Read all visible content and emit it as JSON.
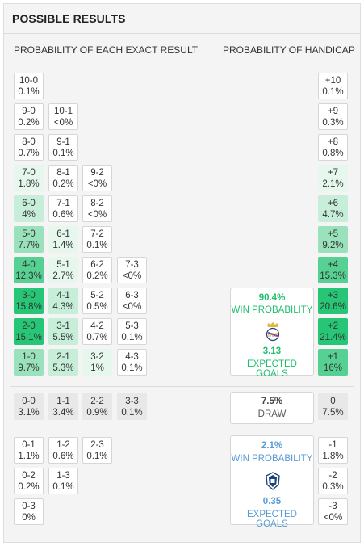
{
  "header": {
    "title": "POSSIBLE RESULTS"
  },
  "columns": {
    "left_title": "PROBABILITY OF EACH EXACT RESULT",
    "right_title": "PROBABILITY OF HANDICAP"
  },
  "colors": {
    "home_win_accent": "#1fbf6e",
    "away_win_accent": "#5b9bd5",
    "draw_cell": "#e8e8e8"
  },
  "home_win_rows": [
    {
      "cells": [
        {
          "score": "10-0",
          "pct": "0.1%",
          "level": 0
        }
      ],
      "handicap": {
        "label": "+10",
        "pct": "0.1%",
        "level": 0
      }
    },
    {
      "cells": [
        {
          "score": "9-0",
          "pct": "0.2%",
          "level": 0
        },
        {
          "score": "10-1",
          "pct": "<0%",
          "level": 0
        }
      ],
      "handicap": {
        "label": "+9",
        "pct": "0.3%",
        "level": 0
      }
    },
    {
      "cells": [
        {
          "score": "8-0",
          "pct": "0.7%",
          "level": 0
        },
        {
          "score": "9-1",
          "pct": "0.1%",
          "level": 0
        }
      ],
      "handicap": {
        "label": "+8",
        "pct": "0.8%",
        "level": 0
      }
    },
    {
      "cells": [
        {
          "score": "7-0",
          "pct": "1.8%",
          "level": 1
        },
        {
          "score": "8-1",
          "pct": "0.2%",
          "level": 0
        },
        {
          "score": "9-2",
          "pct": "<0%",
          "level": 0
        }
      ],
      "handicap": {
        "label": "+7",
        "pct": "2.1%",
        "level": 1
      }
    },
    {
      "cells": [
        {
          "score": "6-0",
          "pct": "4%",
          "level": 2
        },
        {
          "score": "7-1",
          "pct": "0.6%",
          "level": 0
        },
        {
          "score": "8-2",
          "pct": "<0%",
          "level": 0
        }
      ],
      "handicap": {
        "label": "+6",
        "pct": "4.7%",
        "level": 2
      }
    },
    {
      "cells": [
        {
          "score": "5-0",
          "pct": "7.7%",
          "level": 3
        },
        {
          "score": "6-1",
          "pct": "1.4%",
          "level": 1
        },
        {
          "score": "7-2",
          "pct": "0.1%",
          "level": 0
        }
      ],
      "handicap": {
        "label": "+5",
        "pct": "9.2%",
        "level": 3
      }
    },
    {
      "cells": [
        {
          "score": "4-0",
          "pct": "12.3%",
          "level": 4
        },
        {
          "score": "5-1",
          "pct": "2.7%",
          "level": 1
        },
        {
          "score": "6-2",
          "pct": "0.2%",
          "level": 0
        },
        {
          "score": "7-3",
          "pct": "<0%",
          "level": 0
        }
      ],
      "handicap": {
        "label": "+4",
        "pct": "15.3%",
        "level": 4
      }
    },
    {
      "cells": [
        {
          "score": "3-0",
          "pct": "15.8%",
          "level": 5
        },
        {
          "score": "4-1",
          "pct": "4.3%",
          "level": 2
        },
        {
          "score": "5-2",
          "pct": "0.5%",
          "level": 0
        },
        {
          "score": "6-3",
          "pct": "<0%",
          "level": 0
        }
      ],
      "handicap": {
        "label": "+3",
        "pct": "20.6%",
        "level": 5
      }
    },
    {
      "cells": [
        {
          "score": "2-0",
          "pct": "15.1%",
          "level": 5
        },
        {
          "score": "3-1",
          "pct": "5.5%",
          "level": 2
        },
        {
          "score": "4-2",
          "pct": "0.7%",
          "level": 0
        },
        {
          "score": "5-3",
          "pct": "0.1%",
          "level": 0
        }
      ],
      "handicap": {
        "label": "+2",
        "pct": "21.4%",
        "level": 5
      }
    },
    {
      "cells": [
        {
          "score": "1-0",
          "pct": "9.7%",
          "level": 3
        },
        {
          "score": "2-1",
          "pct": "5.3%",
          "level": 2
        },
        {
          "score": "3-2",
          "pct": "1%",
          "level": 1
        },
        {
          "score": "4-3",
          "pct": "0.1%",
          "level": 0
        }
      ],
      "handicap": {
        "label": "+1",
        "pct": "16%",
        "level": 4
      }
    }
  ],
  "draw_row": {
    "cells": [
      {
        "score": "0-0",
        "pct": "3.1%"
      },
      {
        "score": "1-1",
        "pct": "3.4%"
      },
      {
        "score": "2-2",
        "pct": "0.9%"
      },
      {
        "score": "3-3",
        "pct": "0.1%"
      }
    ],
    "summary": {
      "pct": "7.5%",
      "label": "DRAW"
    },
    "handicap": {
      "label": "0",
      "pct": "7.5%"
    }
  },
  "away_win_rows": [
    {
      "cells": [
        {
          "score": "0-1",
          "pct": "1.1%"
        },
        {
          "score": "1-2",
          "pct": "0.6%"
        },
        {
          "score": "2-3",
          "pct": "0.1%"
        }
      ],
      "handicap": {
        "label": "-1",
        "pct": "1.8%"
      }
    },
    {
      "cells": [
        {
          "score": "0-2",
          "pct": "0.2%"
        },
        {
          "score": "1-3",
          "pct": "0.1%"
        }
      ],
      "handicap": {
        "label": "-2",
        "pct": "0.3%"
      }
    },
    {
      "cells": [
        {
          "score": "0-3",
          "pct": "0%"
        }
      ],
      "handicap": {
        "label": "-3",
        "pct": "<0%"
      }
    }
  ],
  "home_card": {
    "win_pct": "90.4%",
    "win_label": "WIN PROBABILITY",
    "crest_icon": "real-madrid-crest-icon",
    "goals": "3.13",
    "goals_label": "EXPECTED GOALS"
  },
  "away_card": {
    "win_pct": "2.1%",
    "win_label": "WIN PROBABILITY",
    "crest_icon": "pachuca-crest-icon",
    "goals": "0.35",
    "goals_label": "EXPECTED GOALS"
  }
}
